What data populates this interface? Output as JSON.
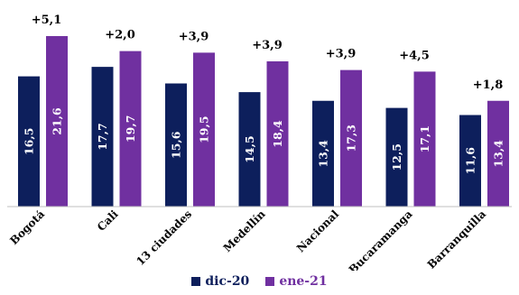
{
  "chart_data": {
    "type": "bar",
    "categories": [
      "Bogotá",
      "Cali",
      "13 ciudades",
      "Medellín",
      "Nacional",
      "Bucaramanga",
      "Barranquilla"
    ],
    "series": [
      {
        "name": "dic-20",
        "color": "#0d1f5c",
        "values": [
          16.5,
          17.7,
          15.6,
          14.5,
          13.4,
          12.5,
          11.6
        ],
        "labels": [
          "16,5",
          "17,7",
          "15,6",
          "14,5",
          "13,4",
          "12,5",
          "11,6"
        ]
      },
      {
        "name": "ene-21",
        "color": "#7030a0",
        "values": [
          21.6,
          19.7,
          19.5,
          18.4,
          17.3,
          17.1,
          13.4
        ],
        "labels": [
          "21,6",
          "19,7",
          "19,5",
          "18,4",
          "17,3",
          "17,1",
          "13,4"
        ]
      }
    ],
    "differences": [
      "+5,1",
      "+2,0",
      "+3,9",
      "+3,9",
      "+3,9",
      "+4,5",
      "+1,8"
    ],
    "ylim": [
      0,
      24
    ],
    "grid": false,
    "legend_position": "bottom"
  }
}
